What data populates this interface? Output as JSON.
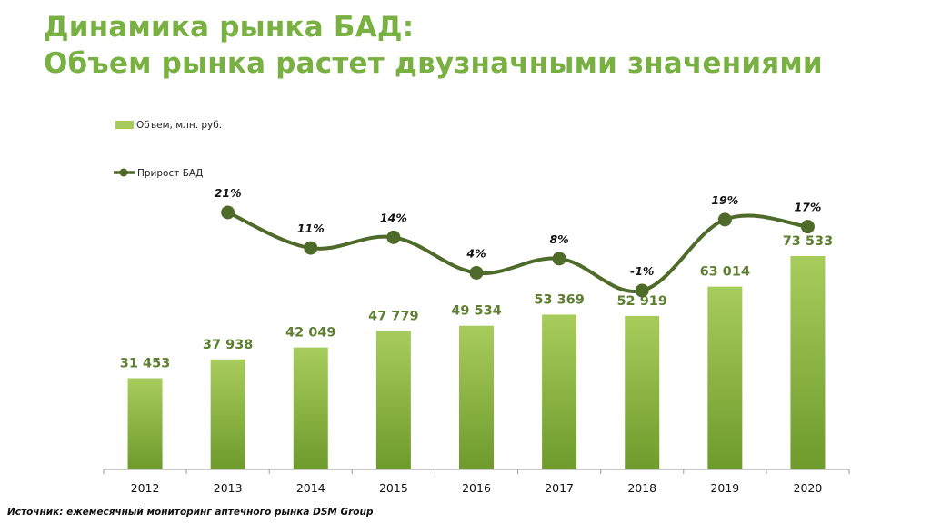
{
  "title": {
    "line1": "Динамика рынка БАД:",
    "line2": "Объем рынка растет двузначными значениями"
  },
  "source": "Источник: ежемесячный мониторинг аптечного рынка DSM Group",
  "colors": {
    "title": "#78b041",
    "bar_top": "#a8cc5c",
    "bar_bottom": "#6e9b2c",
    "line": "#4e6b2a",
    "value_label": "#5e7f32",
    "axis": "#9a9a9a"
  },
  "chart_data": {
    "type": "bar",
    "categories": [
      "2012",
      "2013",
      "2014",
      "2015",
      "2016",
      "2017",
      "2018",
      "2019",
      "2020"
    ],
    "series": [
      {
        "name": "Объем, млн. руб.",
        "type": "bar",
        "values": [
          31453,
          37938,
          42049,
          47779,
          49534,
          53369,
          52919,
          63014,
          73533
        ],
        "labels": [
          "31 453",
          "37 938",
          "42 049",
          "47 779",
          "49 534",
          "53 369",
          "52 919",
          "63 014",
          "73 533"
        ]
      },
      {
        "name": "Прирост БАД",
        "type": "line",
        "x": [
          "2013",
          "2014",
          "2015",
          "2016",
          "2017",
          "2018",
          "2019",
          "2020"
        ],
        "values": [
          21,
          11,
          14,
          4,
          8,
          -1,
          19,
          17
        ],
        "labels": [
          "21%",
          "11%",
          "14%",
          "4%",
          "8%",
          "-1%",
          "19%",
          "17%"
        ]
      }
    ],
    "legend": [
      "Объем, млн. руб.",
      "Прирост БАД"
    ],
    "legend_position": "top-left",
    "grid": false
  }
}
